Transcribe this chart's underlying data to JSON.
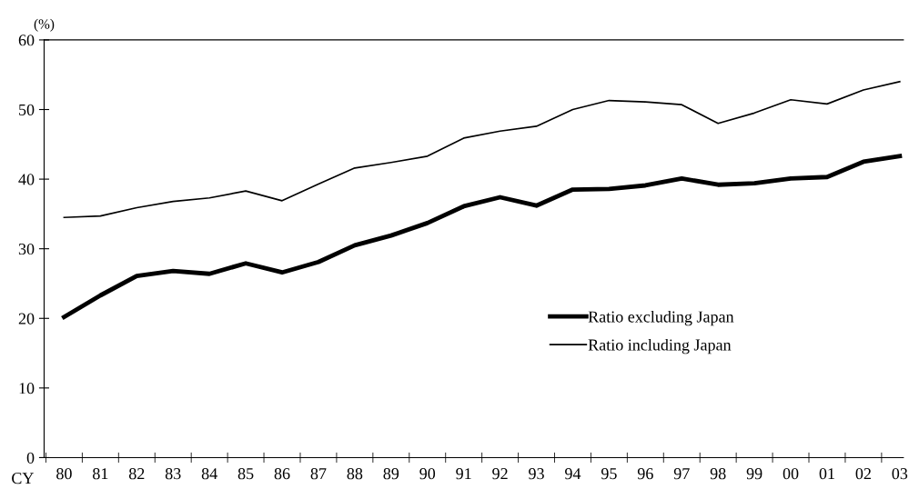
{
  "chart_data": {
    "type": "line",
    "ylabel": "(%)",
    "xlabel": "CY",
    "categories": [
      "80",
      "81",
      "82",
      "83",
      "84",
      "85",
      "86",
      "87",
      "88",
      "89",
      "90",
      "91",
      "92",
      "93",
      "94",
      "95",
      "96",
      "97",
      "98",
      "99",
      "00",
      "01",
      "02",
      "03"
    ],
    "series": [
      {
        "name": "Ratio excluding Japan",
        "color": "#000000",
        "values": [
          20.2,
          23.3,
          26.1,
          26.8,
          26.4,
          27.9,
          26.6,
          28.1,
          30.5,
          31.9,
          33.7,
          36.1,
          37.4,
          36.2,
          38.5,
          38.6,
          39.1,
          40.1,
          39.2,
          39.4,
          40.1,
          40.3,
          42.5,
          43.3
        ]
      },
      {
        "name": "Ratio including Japan",
        "color": "#000000",
        "values": [
          34.5,
          34.7,
          35.9,
          36.8,
          37.3,
          38.3,
          36.9,
          39.3,
          41.6,
          42.4,
          43.3,
          45.9,
          46.9,
          47.6,
          50.0,
          51.3,
          51.1,
          50.7,
          48.0,
          49.5,
          51.4,
          50.8,
          52.8,
          54.0
        ]
      }
    ],
    "ylim": [
      0,
      60
    ],
    "yticks": [
      0,
      10,
      20,
      30,
      40,
      50,
      60
    ],
    "grid": false,
    "legend": "center right",
    "marker": "none",
    "line_style": "solid"
  }
}
